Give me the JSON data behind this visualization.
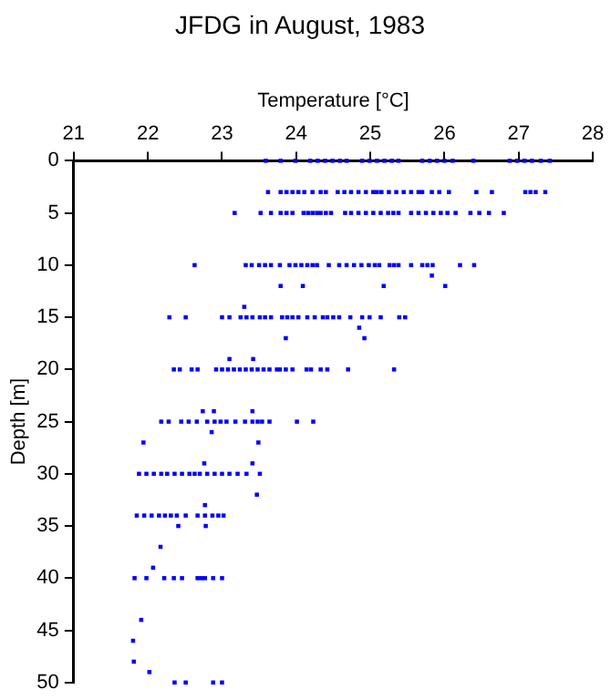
{
  "chart_data": {
    "type": "scatter",
    "title": "JFDG in August, 1983",
    "xlabel": "Temperature [°C]",
    "ylabel": "Depth [m]",
    "xlim": [
      21,
      28
    ],
    "xticks": [
      21,
      22,
      23,
      24,
      25,
      26,
      27,
      28
    ],
    "ylim": [
      50,
      0
    ],
    "yticks": [
      0,
      5,
      10,
      15,
      20,
      25,
      30,
      35,
      40,
      45,
      50
    ],
    "grid": false,
    "legend": false,
    "marker": "square",
    "series": [
      {
        "color": "#0000ff",
        "x": [
          23.59,
          23.79,
          23.99,
          24.19,
          24.29,
          24.39,
          24.49,
          24.59,
          24.68,
          24.89,
          24.99,
          25.09,
          25.19,
          25.29,
          25.38,
          25.7,
          25.8,
          25.9,
          26.0,
          26.11,
          26.39,
          26.88,
          26.98,
          27.08,
          27.18,
          27.3,
          27.42
        ],
        "values": [
          0,
          0,
          0,
          0,
          0,
          0,
          0,
          0,
          0,
          0,
          0,
          0,
          0,
          0,
          0,
          0,
          0,
          0,
          0,
          0,
          0,
          0,
          0,
          0,
          0,
          0,
          0
        ]
      },
      {
        "color": "#0000ff",
        "x": [
          23.62,
          23.79,
          23.87,
          23.95,
          24.03,
          24.11,
          24.22,
          24.33,
          24.4,
          24.56,
          24.65,
          24.74,
          24.84,
          24.94,
          25.04,
          25.09,
          25.15,
          25.25,
          25.35,
          25.45,
          25.55,
          25.65,
          25.7,
          25.83,
          25.93,
          26.06,
          26.43,
          26.64,
          27.09,
          27.16,
          27.23,
          27.36
        ],
        "values": [
          3,
          3,
          3,
          3,
          3,
          3,
          3,
          3,
          3,
          3,
          3,
          3,
          3,
          3,
          3,
          3,
          3,
          3,
          3,
          3,
          3,
          3,
          3,
          3,
          3,
          3,
          3,
          3,
          3,
          3,
          3,
          3
        ]
      },
      {
        "color": "#0000ff",
        "x": [
          23.17,
          23.52,
          23.66,
          23.79,
          23.87,
          23.95,
          24.1,
          24.16,
          24.22,
          24.28,
          24.33,
          24.4,
          24.47,
          24.66,
          24.74,
          24.84,
          24.94,
          25.04,
          25.14,
          25.24,
          25.31,
          25.38,
          25.55,
          25.65,
          25.75,
          25.85,
          25.95,
          26.04,
          26.15,
          26.35,
          26.47,
          26.6,
          26.8
        ],
        "values": [
          5,
          5,
          5,
          5,
          5,
          5,
          5,
          5,
          5,
          5,
          5,
          5,
          5,
          5,
          5,
          5,
          5,
          5,
          5,
          5,
          5,
          5,
          5,
          5,
          5,
          5,
          5,
          5,
          5,
          5,
          5,
          5,
          5
        ]
      },
      {
        "color": "#0000ff",
        "x": [
          22.63,
          23.32,
          23.4,
          23.5,
          23.58,
          23.66,
          23.78,
          23.91,
          23.99,
          24.07,
          24.15,
          24.22,
          24.28,
          24.44,
          24.58,
          24.68,
          24.78,
          24.88,
          24.98,
          25.06,
          25.12,
          25.26,
          25.32,
          25.38,
          25.55,
          25.7,
          25.77,
          25.84,
          26.21,
          26.4
        ],
        "values": [
          10,
          10,
          10,
          10,
          10,
          10,
          10,
          10,
          10,
          10,
          10,
          10,
          10,
          10,
          10,
          10,
          10,
          10,
          10,
          10,
          10,
          10,
          10,
          10,
          10,
          10,
          10,
          10,
          10,
          10
        ]
      },
      {
        "color": "#0000ff",
        "x": [
          25.83,
          23.79,
          24.09,
          25.18,
          26.01,
          23.3,
          24.85,
          23.86,
          24.92,
          23.1,
          23.42
        ],
        "values": [
          11,
          12,
          12,
          12,
          12,
          14,
          16,
          17,
          17,
          19,
          19
        ]
      },
      {
        "color": "#0000ff",
        "x": [
          22.29,
          22.51,
          23.0,
          23.1,
          23.25,
          23.33,
          23.41,
          23.51,
          23.58,
          23.66,
          23.81,
          23.88,
          23.95,
          24.03,
          24.15,
          24.25,
          24.36,
          24.42,
          24.5,
          24.58,
          24.73,
          24.89,
          24.99,
          25.14,
          25.39,
          25.47
        ],
        "values": [
          15,
          15,
          15,
          15,
          15,
          15,
          15,
          15,
          15,
          15,
          15,
          15,
          15,
          15,
          15,
          15,
          15,
          15,
          15,
          15,
          15,
          15,
          15,
          15,
          15,
          15
        ]
      },
      {
        "color": "#0000ff",
        "x": [
          22.35,
          22.43,
          22.59,
          22.67,
          22.92,
          23.0,
          23.08,
          23.16,
          23.24,
          23.32,
          23.4,
          23.48,
          23.56,
          23.64,
          23.74,
          23.78,
          23.86,
          23.95,
          24.14,
          24.2,
          24.33,
          24.42,
          24.7,
          25.32
        ],
        "values": [
          20,
          20,
          20,
          20,
          20,
          20,
          20,
          20,
          20,
          20,
          20,
          20,
          20,
          20,
          20,
          20,
          20,
          20,
          20,
          20,
          20,
          20,
          20,
          20
        ]
      },
      {
        "color": "#0000ff",
        "x": [
          22.74,
          22.89,
          23.41,
          22.18,
          22.28,
          22.45,
          22.55,
          22.66,
          22.8,
          22.9,
          22.98,
          23.06,
          23.18,
          23.31,
          23.41,
          23.48,
          23.54,
          23.64,
          24.01,
          24.23,
          22.86,
          21.94,
          23.49,
          22.76,
          23.41
        ],
        "values": [
          24,
          24,
          24,
          25,
          25,
          25,
          25,
          25,
          25,
          25,
          25,
          25,
          25,
          25,
          25,
          25,
          25,
          25,
          25,
          25,
          26,
          27,
          27,
          29,
          29
        ]
      },
      {
        "color": "#0000ff",
        "x": [
          21.88,
          21.98,
          22.08,
          22.18,
          22.26,
          22.36,
          22.46,
          22.56,
          22.63,
          22.7,
          22.8,
          22.9,
          23.0,
          23.1,
          23.21,
          23.33,
          23.51,
          23.47,
          22.77
        ],
        "values": [
          30,
          30,
          30,
          30,
          30,
          30,
          30,
          30,
          30,
          30,
          30,
          30,
          30,
          30,
          30,
          30,
          30,
          32,
          33
        ]
      },
      {
        "color": "#0000ff",
        "x": [
          21.85,
          21.95,
          22.05,
          22.15,
          22.23,
          22.31,
          22.39,
          22.51,
          22.67,
          22.77,
          22.87,
          22.95,
          23.02,
          22.41,
          22.78,
          22.17,
          22.07
        ],
        "values": [
          34,
          34,
          34,
          34,
          34,
          34,
          34,
          34,
          34,
          34,
          34,
          34,
          34,
          35,
          35,
          37,
          39
        ]
      },
      {
        "color": "#0000ff",
        "x": [
          21.82,
          21.98,
          22.22,
          22.35,
          22.46,
          22.67,
          22.72,
          22.77,
          22.88,
          23.0,
          21.91,
          21.8,
          21.81,
          22.02,
          22.36,
          22.51,
          22.88,
          23.0
        ],
        "values": [
          40,
          40,
          40,
          40,
          40,
          40,
          40,
          40,
          40,
          40,
          44,
          46,
          48,
          49,
          50,
          50,
          50,
          50
        ]
      }
    ]
  }
}
